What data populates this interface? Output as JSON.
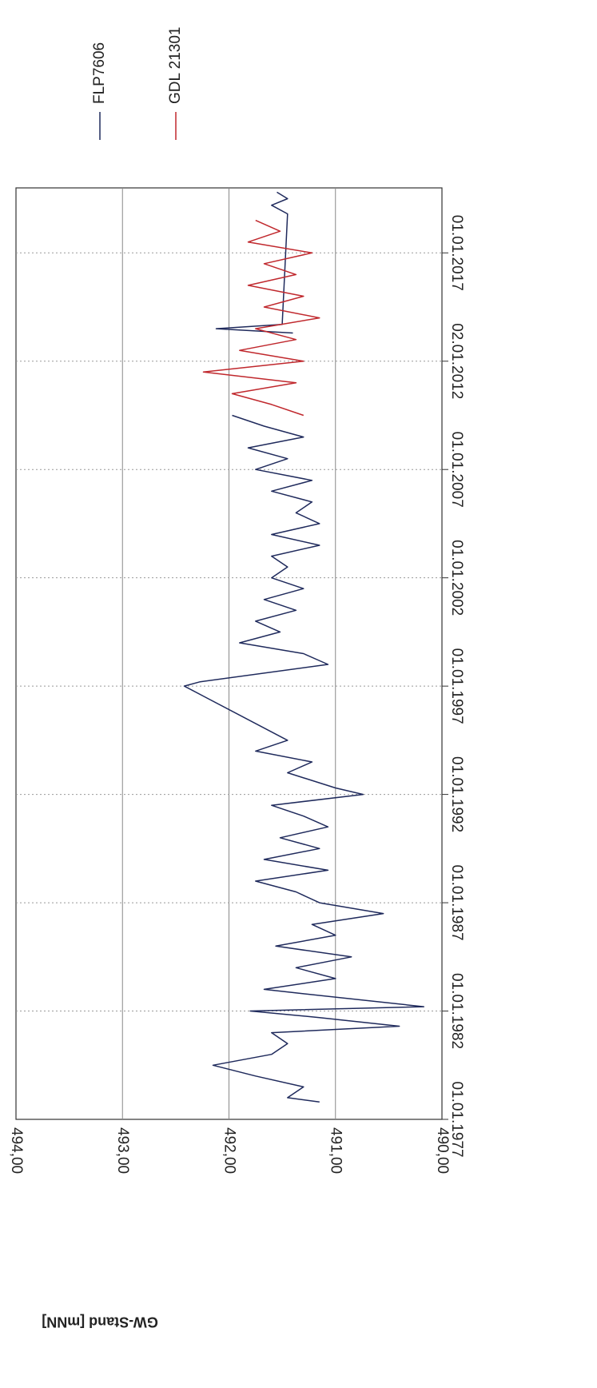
{
  "chart_data": {
    "type": "line",
    "y_axis_label": "GW-Stand [mNN]",
    "ylim": [
      490,
      494
    ],
    "yticks": [
      {
        "value": 494,
        "label": "494,00"
      },
      {
        "value": 493,
        "label": "493,00"
      },
      {
        "value": 492,
        "label": "492,00"
      },
      {
        "value": 491,
        "label": "491,00"
      },
      {
        "value": 490,
        "label": "490,00"
      }
    ],
    "xlim": [
      1977,
      2020
    ],
    "xticks": [
      {
        "value": 1977,
        "label": "01.01.1977"
      },
      {
        "value": 1982,
        "label": "01.01.1982"
      },
      {
        "value": 1987,
        "label": "01.01.1987"
      },
      {
        "value": 1992,
        "label": "01.01.1992"
      },
      {
        "value": 1997,
        "label": "01.01.1997"
      },
      {
        "value": 2002,
        "label": "01.01.2002"
      },
      {
        "value": 2007,
        "label": "01.01.2007"
      },
      {
        "value": 2012,
        "label": "02.01.2012"
      },
      {
        "value": 2017,
        "label": "01.01.2017"
      }
    ],
    "grid": true,
    "series": [
      {
        "name": "FLP7606",
        "color": "#1f2a5c",
        "x": [
          1977.8,
          1978,
          1978.5,
          1979,
          1979.5,
          1980,
          1980.5,
          1981,
          1981.3,
          1981.7,
          1982,
          1982.2,
          1982.8,
          1983,
          1983.5,
          1984,
          1984.5,
          1985,
          1985.5,
          1986,
          1986.5,
          1987,
          1987.5,
          1988,
          1988.5,
          1989,
          1989.5,
          1990,
          1990.5,
          1991,
          1991.5,
          1992,
          1992.3,
          1993,
          1993.5,
          1994,
          1994.5,
          1997,
          1997.2,
          1998,
          1998.5,
          1999,
          1999.5,
          2000,
          2000.5,
          2001,
          2001.5,
          2002,
          2002.5,
          2003,
          2003.5,
          2004,
          2004.5,
          2005,
          2005.5,
          2006,
          2006.5,
          2007,
          2007.5,
          2008,
          2008.5,
          2009,
          2009.5,
          2010,
          2013.3,
          2013.5,
          2013.7,
          2018.8,
          2019.2,
          2019.5,
          2019.8
        ],
        "values": [
          491.15,
          491.45,
          491.3,
          491.75,
          492.15,
          491.6,
          491.45,
          491.6,
          490.4,
          491.15,
          491.8,
          490.17,
          491.3,
          491.67,
          491.0,
          491.37,
          490.85,
          491.56,
          491.0,
          491.22,
          490.55,
          491.15,
          491.37,
          491.75,
          491.07,
          491.67,
          491.15,
          491.52,
          491.07,
          491.3,
          491.6,
          490.74,
          491.0,
          491.45,
          491.22,
          491.75,
          491.45,
          492.42,
          492.27,
          491.07,
          491.3,
          491.9,
          491.52,
          491.75,
          491.37,
          491.67,
          491.3,
          491.6,
          491.45,
          491.6,
          491.15,
          491.6,
          491.15,
          491.37,
          491.22,
          491.6,
          491.22,
          491.75,
          491.45,
          491.82,
          491.3,
          491.67,
          491.97,
          null,
          491.4,
          492.12,
          491.5,
          491.45,
          491.6,
          491.45,
          491.55
        ]
      },
      {
        "name": "GDL 21301",
        "color": "#c0282d",
        "x": [
          2009.5,
          2010,
          2010.5,
          2011,
          2011.5,
          2012,
          2012.5,
          2013,
          2013.5,
          2014,
          2014.5,
          2015,
          2015.5,
          2016,
          2016.5,
          2017,
          2017.5,
          2018,
          2018.5
        ],
        "values": [
          491.3,
          491.6,
          491.97,
          491.37,
          492.24,
          491.3,
          491.9,
          491.37,
          491.75,
          491.15,
          491.67,
          491.3,
          491.82,
          491.37,
          491.67,
          491.22,
          491.82,
          491.52,
          491.75
        ]
      }
    ]
  }
}
